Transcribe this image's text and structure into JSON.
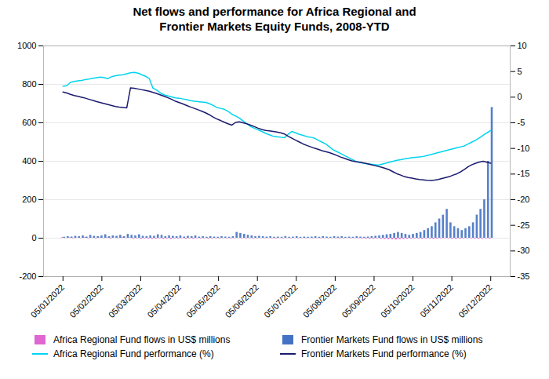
{
  "chart_data": {
    "type": "bar",
    "title": "Net flows and performance for Africa Regional and\nFrontier Markets Equity Funds, 2008-YTD",
    "x": [
      0,
      0.0965,
      0.193,
      0.2895,
      0.386,
      0.4825,
      0.5789,
      0.6754,
      0.7719,
      0.8684,
      0.9649,
      1.0614,
      1.1579,
      1.2544,
      1.3509,
      1.4474,
      1.5439,
      1.6404,
      1.7368,
      1.8333,
      1.9298,
      2.0263,
      2.1228,
      2.2193,
      2.3158,
      2.4123,
      2.5088,
      2.6053,
      2.7018,
      2.7982,
      2.8947,
      2.9912,
      3.0877,
      3.1842,
      3.2807,
      3.3772,
      3.4737,
      3.5702,
      3.6667,
      3.7632,
      3.8596,
      3.9561,
      4.0526,
      4.1491,
      4.2456,
      4.3421,
      4.4386,
      4.5351,
      4.6316,
      4.7281,
      4.8246,
      4.9211,
      5.0175,
      5.114,
      5.2105,
      5.307,
      5.4035,
      5.5,
      5.5965,
      5.693,
      5.7895,
      5.886,
      5.9825,
      6.0789,
      6.1754,
      6.2719,
      6.3684,
      6.4649,
      6.5614,
      6.6579,
      6.7544,
      6.8509,
      6.9474,
      7.0439,
      7.1404,
      7.2368,
      7.3333,
      7.4298,
      7.5263,
      7.6228,
      7.7193,
      7.8158,
      7.9123,
      8.0088,
      8.1053,
      8.2018,
      8.2982,
      8.3947,
      8.4912,
      8.5877,
      8.6842,
      8.7807,
      8.8772,
      8.9737,
      9.0702,
      9.1667,
      9.2632,
      9.3596,
      9.4561,
      9.5526,
      9.6491,
      9.7456,
      9.8421,
      9.9386,
      10.0351,
      10.1316,
      10.2281,
      10.3246,
      10.4211,
      10.5175,
      10.614,
      10.7105,
      10.807,
      10.9035,
      11
    ],
    "xlim": [
      -0.5,
      11.5
    ],
    "xticks": [
      {
        "value": 0,
        "label": "05/01/2022"
      },
      {
        "value": 1,
        "label": "05/02/2022"
      },
      {
        "value": 2,
        "label": "05/03/2022"
      },
      {
        "value": 3,
        "label": "05/04/2022"
      },
      {
        "value": 4,
        "label": "05/05/2022"
      },
      {
        "value": 5,
        "label": "05/06/2022"
      },
      {
        "value": 6,
        "label": "05/07/2022"
      },
      {
        "value": 7,
        "label": "05/08/2022"
      },
      {
        "value": 8,
        "label": "05/09/2022"
      },
      {
        "value": 9,
        "label": "05/10/2022"
      },
      {
        "value": 10,
        "label": "05/11/2022"
      },
      {
        "value": 11,
        "label": "05/12/2022"
      }
    ],
    "ylim": [
      -200,
      1000
    ],
    "yticks": [
      -200,
      0,
      200,
      400,
      600,
      800,
      1000
    ],
    "y2lim": [
      -35,
      10
    ],
    "y2ticks": [
      -35,
      -30,
      -25,
      -20,
      -15,
      -10,
      -5,
      0,
      5,
      10
    ],
    "grid": true,
    "legend": "bottom",
    "series": [
      {
        "name": "Africa Regional Fund flows in US$ millions",
        "type": "bar",
        "color": "#e066d0",
        "values": [
          3,
          -1,
          2,
          -2,
          1,
          -1,
          3,
          -2,
          1,
          -3,
          2,
          -1,
          2,
          -3,
          1,
          -2,
          3,
          -1,
          2,
          -4,
          -3,
          -5,
          -3,
          -4,
          -5,
          -4,
          -3,
          -5,
          -4,
          -6,
          -3,
          -4,
          -2,
          -5,
          -3,
          -4,
          -2,
          -3,
          -2,
          -4,
          -3,
          -2,
          -3,
          -1,
          -2,
          -3,
          -2,
          -1,
          -2,
          -3,
          -2,
          -3,
          -2,
          -1,
          -2,
          -1,
          -2,
          -3,
          -1,
          -2,
          -1,
          -2,
          -1,
          -2,
          -1,
          -2,
          -1,
          -2,
          -1,
          -2,
          -1,
          -2,
          -1,
          -2,
          -3,
          -2,
          -1,
          -2,
          -1,
          -2,
          -3,
          -4,
          -5,
          -4,
          -3,
          -5,
          -6,
          -7,
          -8,
          -9,
          -7,
          -6,
          -5,
          -4,
          -3,
          -4,
          -5,
          -3,
          -4,
          -5,
          -4,
          -3,
          -2,
          -3,
          -4,
          -5,
          -4,
          -3,
          -2,
          -3,
          -4,
          -5,
          -4,
          -3,
          -4
        ]
      },
      {
        "name": "Frontier Markets Fund flows in US$ millions",
        "type": "bar",
        "color": "#4472c4",
        "values": [
          5,
          8,
          6,
          10,
          8,
          12,
          6,
          15,
          10,
          8,
          12,
          18,
          8,
          12,
          10,
          15,
          8,
          20,
          15,
          12,
          18,
          10,
          8,
          12,
          10,
          18,
          15,
          8,
          12,
          10,
          8,
          12,
          6,
          10,
          8,
          12,
          6,
          8,
          5,
          8,
          6,
          5,
          8,
          6,
          5,
          8,
          30,
          25,
          20,
          15,
          12,
          8,
          10,
          8,
          6,
          8,
          5,
          6,
          5,
          8,
          5,
          6,
          8,
          5,
          6,
          5,
          6,
          8,
          5,
          8,
          6,
          5,
          8,
          6,
          8,
          5,
          6,
          5,
          8,
          6,
          5,
          6,
          8,
          10,
          12,
          15,
          18,
          20,
          25,
          30,
          25,
          20,
          15,
          20,
          25,
          30,
          40,
          50,
          60,
          80,
          100,
          120,
          150,
          80,
          60,
          50,
          40,
          50,
          60,
          80,
          120,
          150,
          200,
          400,
          680
        ]
      },
      {
        "name": "Africa Regional Fund performance (%)",
        "type": "line",
        "color": "#00d4f0",
        "values": [
          790,
          793,
          810,
          815,
          818,
          820,
          825,
          828,
          832,
          835,
          838,
          835,
          830,
          840,
          845,
          848,
          850,
          855,
          860,
          862,
          858,
          850,
          842,
          830,
          780,
          770,
          755,
          745,
          740,
          735,
          730,
          728,
          724,
          720,
          715,
          712,
          710,
          708,
          706,
          700,
          690,
          680,
          675,
          670,
          660,
          645,
          635,
          625,
          610,
          595,
          580,
          572,
          563,
          555,
          545,
          538,
          530,
          528,
          525,
          522,
          540,
          555,
          548,
          540,
          535,
          528,
          525,
          520,
          510,
          500,
          490,
          475,
          460,
          450,
          440,
          430,
          420,
          410,
          400,
          395,
          390,
          387,
          385,
          383,
          380,
          385,
          390,
          395,
          400,
          405,
          408,
          412,
          415,
          418,
          420,
          422,
          425,
          430,
          435,
          440,
          445,
          450,
          455,
          460,
          465,
          470,
          475,
          480,
          490,
          500,
          510,
          522,
          535,
          548,
          560
        ]
      },
      {
        "name": "Frontier Markets Fund performance (%)",
        "type": "line",
        "color": "#1a1a6e",
        "values": [
          760,
          755,
          748,
          742,
          738,
          733,
          728,
          722,
          716,
          710,
          705,
          700,
          695,
          690,
          685,
          682,
          680,
          678,
          782,
          780,
          776,
          772,
          768,
          764,
          758,
          752,
          745,
          738,
          730,
          722,
          712,
          705,
          698,
          690,
          682,
          675,
          668,
          660,
          652,
          642,
          630,
          620,
          612,
          603,
          595,
          588,
          602,
          605,
          600,
          595,
          588,
          580,
          572,
          565,
          560,
          558,
          555,
          552,
          548,
          542,
          530,
          520,
          510,
          500,
          490,
          482,
          475,
          468,
          462,
          455,
          450,
          445,
          438,
          430,
          422,
          415,
          408,
          402,
          398,
          395,
          392,
          388,
          383,
          378,
          373,
          368,
          362,
          355,
          345,
          335,
          328,
          320,
          315,
          312,
          308,
          305,
          303,
          301,
          300,
          302,
          305,
          310,
          315,
          320,
          328,
          335,
          345,
          358,
          372,
          382,
          390,
          396,
          400,
          395,
          390
        ]
      }
    ]
  }
}
